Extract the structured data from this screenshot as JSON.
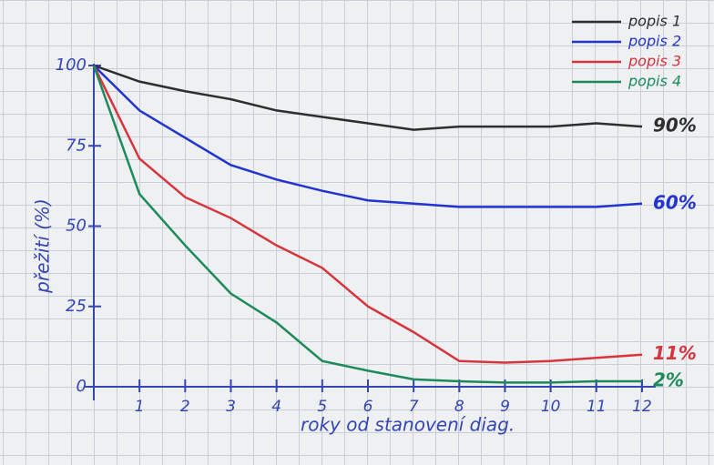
{
  "chart_data": {
    "type": "line",
    "xlabel": "roky od stanovení diag.",
    "ylabel": "přežití (%)",
    "x": [
      0,
      1,
      2,
      3,
      4,
      5,
      6,
      7,
      8,
      9,
      10,
      11,
      12
    ],
    "xlim": [
      0,
      12
    ],
    "xticks": [
      1,
      2,
      3,
      4,
      5,
      6,
      7,
      8,
      9,
      10,
      11,
      12
    ],
    "ylim": [
      0,
      100
    ],
    "yticks": [
      0,
      25,
      50,
      75,
      100
    ],
    "legend": "top-right",
    "series": [
      {
        "name": "popis 1",
        "color": "#2e2e2e",
        "annotation": "90%",
        "values": [
          100,
          95,
          92,
          89.5,
          86,
          84,
          82,
          80,
          81,
          81,
          81,
          82,
          81
        ]
      },
      {
        "name": "popis 2",
        "color": "#2234d0",
        "annotation": "60%",
        "values": [
          100,
          86,
          77.5,
          69,
          64.5,
          61,
          58,
          57,
          56,
          56,
          56,
          56,
          57
        ]
      },
      {
        "name": "popis 3",
        "color": "#d8343e",
        "annotation": "11%",
        "values": [
          100,
          71,
          59,
          52.5,
          44,
          37,
          25,
          17,
          8,
          7.5,
          8,
          9,
          10
        ]
      },
      {
        "name": "popis 4",
        "color": "#1d8a5c",
        "annotation": "2%",
        "values": [
          100,
          60,
          44,
          29,
          20,
          8,
          5,
          2.3,
          1.7,
          1.3,
          1.3,
          1.7,
          1.7
        ]
      }
    ]
  }
}
